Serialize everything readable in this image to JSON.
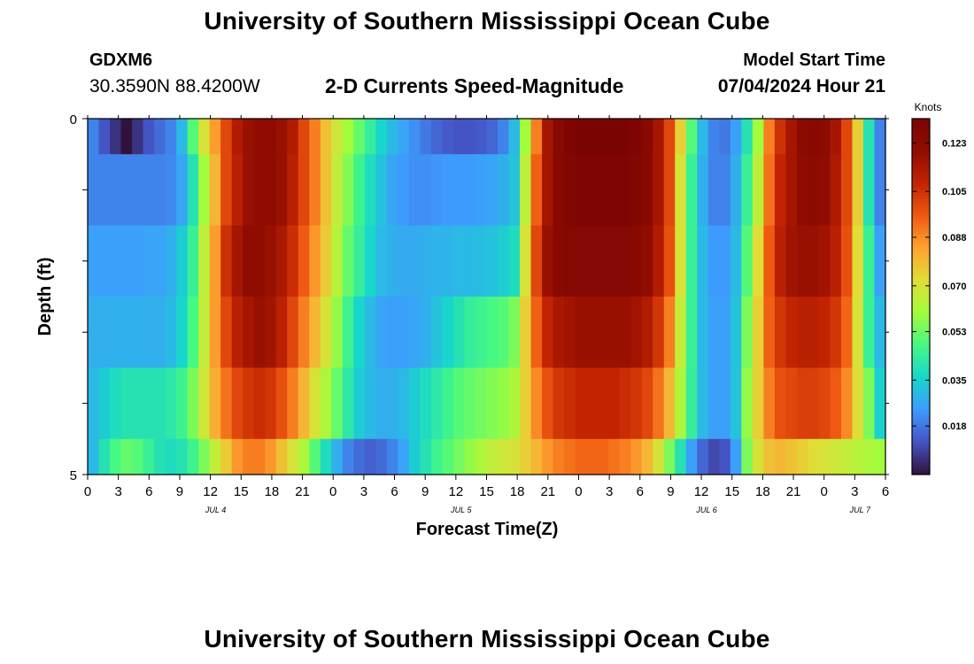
{
  "page": {
    "title": "University of Southern Mississippi Ocean Cube",
    "footer_title": "University of Southern Mississippi Ocean Cube",
    "station": "GDXM6",
    "coordinates": "30.3590N  88.4200W",
    "subtitle": "2-D Currents Speed-Magnitude",
    "model_start_label": "Model Start Time",
    "model_start_value": "07/04/2024 Hour 21"
  },
  "chart_data": {
    "type": "heatmap",
    "title": "2-D Currents Speed-Magnitude",
    "xlabel": "Forecast Time(Z)",
    "ylabel": "Depth (ft)",
    "units_label": "Knots",
    "x_hours_range": [
      0,
      78
    ],
    "y_range": [
      0,
      5
    ],
    "y_tick_labels": [
      "0",
      "5"
    ],
    "x_tick_labels": [
      "0",
      "3",
      "6",
      "9",
      "12",
      "15",
      "18",
      "21",
      "0",
      "3",
      "6",
      "9",
      "12",
      "15",
      "18",
      "21",
      "0",
      "3",
      "6",
      "9",
      "12",
      "15",
      "18",
      "21",
      "0",
      "3",
      "6"
    ],
    "date_labels": [
      {
        "label": "JUL 4",
        "hour": 12
      },
      {
        "label": "JUL 5",
        "hour": 36
      },
      {
        "label": "JUL 6",
        "hour": 60
      },
      {
        "label": "JUL 7",
        "hour": 75
      }
    ],
    "colorbar": {
      "min": 0.0,
      "max": 0.132,
      "tick_values": [
        0.018,
        0.035,
        0.053,
        0.07,
        0.088,
        0.105,
        0.123
      ],
      "tick_labels": [
        "0.018",
        "0.035",
        "0.053",
        "0.070",
        "0.088",
        "0.105",
        "0.123"
      ],
      "colors": [
        "#30123b",
        "#4454c4",
        "#3e9bfe",
        "#18d6cb",
        "#46f884",
        "#a2fc3c",
        "#e1dd37",
        "#fea331",
        "#ef5911",
        "#c22402",
        "#900c00",
        "#7a0403"
      ]
    },
    "depth_layers": [
      "0.0-0.5",
      "0.5-1.5",
      "1.5-2.5",
      "2.5-3.5",
      "3.5-4.5",
      "4.5-5.0"
    ],
    "time_step_hours": 1,
    "speed_knots": [
      [
        0.02,
        0.012,
        0.006,
        0.0,
        0.006,
        0.012,
        0.016,
        0.02,
        0.03,
        0.05,
        0.07,
        0.085,
        0.1,
        0.112,
        0.118,
        0.12,
        0.12,
        0.118,
        0.112,
        0.1,
        0.09,
        0.078,
        0.068,
        0.06,
        0.052,
        0.044,
        0.036,
        0.03,
        0.026,
        0.022,
        0.018,
        0.015,
        0.013,
        0.012,
        0.012,
        0.013,
        0.015,
        0.02,
        0.03,
        0.06,
        0.09,
        0.115,
        0.125,
        0.13,
        0.132,
        0.132,
        0.132,
        0.132,
        0.132,
        0.13,
        0.125,
        0.115,
        0.1,
        0.075,
        0.05,
        0.03,
        0.02,
        0.018,
        0.025,
        0.04,
        0.06,
        0.09,
        0.105,
        0.115,
        0.122,
        0.125,
        0.122,
        0.115,
        0.1,
        0.075,
        0.04,
        0.02
      ],
      [
        0.02,
        0.02,
        0.02,
        0.02,
        0.02,
        0.02,
        0.02,
        0.021,
        0.026,
        0.04,
        0.06,
        0.08,
        0.1,
        0.11,
        0.118,
        0.12,
        0.12,
        0.118,
        0.11,
        0.1,
        0.09,
        0.078,
        0.066,
        0.056,
        0.046,
        0.038,
        0.032,
        0.026,
        0.024,
        0.022,
        0.022,
        0.023,
        0.024,
        0.024,
        0.024,
        0.025,
        0.026,
        0.028,
        0.032,
        0.065,
        0.095,
        0.115,
        0.124,
        0.128,
        0.13,
        0.13,
        0.13,
        0.13,
        0.13,
        0.128,
        0.124,
        0.115,
        0.1,
        0.07,
        0.045,
        0.028,
        0.02,
        0.02,
        0.028,
        0.045,
        0.065,
        0.092,
        0.108,
        0.115,
        0.12,
        0.122,
        0.12,
        0.113,
        0.1,
        0.075,
        0.04,
        0.02
      ],
      [
        0.025,
        0.025,
        0.025,
        0.025,
        0.025,
        0.026,
        0.026,
        0.028,
        0.034,
        0.045,
        0.065,
        0.085,
        0.105,
        0.115,
        0.12,
        0.12,
        0.118,
        0.114,
        0.106,
        0.096,
        0.086,
        0.076,
        0.064,
        0.052,
        0.044,
        0.036,
        0.03,
        0.028,
        0.027,
        0.027,
        0.028,
        0.029,
        0.029,
        0.03,
        0.03,
        0.031,
        0.032,
        0.034,
        0.038,
        0.07,
        0.1,
        0.118,
        0.124,
        0.126,
        0.126,
        0.126,
        0.126,
        0.126,
        0.126,
        0.124,
        0.12,
        0.112,
        0.098,
        0.07,
        0.045,
        0.03,
        0.024,
        0.024,
        0.03,
        0.05,
        0.072,
        0.096,
        0.11,
        0.116,
        0.118,
        0.118,
        0.116,
        0.11,
        0.098,
        0.072,
        0.045,
        0.025
      ],
      [
        0.028,
        0.028,
        0.028,
        0.028,
        0.028,
        0.028,
        0.028,
        0.03,
        0.036,
        0.048,
        0.066,
        0.085,
        0.1,
        0.11,
        0.115,
        0.118,
        0.116,
        0.11,
        0.1,
        0.09,
        0.08,
        0.07,
        0.058,
        0.046,
        0.036,
        0.03,
        0.026,
        0.025,
        0.025,
        0.026,
        0.028,
        0.032,
        0.036,
        0.04,
        0.044,
        0.046,
        0.048,
        0.05,
        0.055,
        0.075,
        0.095,
        0.108,
        0.114,
        0.116,
        0.118,
        0.118,
        0.118,
        0.118,
        0.118,
        0.116,
        0.112,
        0.104,
        0.09,
        0.066,
        0.045,
        0.03,
        0.025,
        0.025,
        0.032,
        0.055,
        0.075,
        0.095,
        0.104,
        0.108,
        0.11,
        0.11,
        0.108,
        0.104,
        0.094,
        0.07,
        0.045,
        0.03
      ],
      [
        0.03,
        0.034,
        0.038,
        0.04,
        0.04,
        0.04,
        0.04,
        0.042,
        0.046,
        0.055,
        0.068,
        0.082,
        0.092,
        0.1,
        0.104,
        0.106,
        0.104,
        0.098,
        0.09,
        0.08,
        0.07,
        0.062,
        0.052,
        0.042,
        0.034,
        0.03,
        0.028,
        0.028,
        0.03,
        0.034,
        0.038,
        0.042,
        0.046,
        0.05,
        0.052,
        0.054,
        0.056,
        0.058,
        0.062,
        0.075,
        0.088,
        0.098,
        0.104,
        0.106,
        0.108,
        0.108,
        0.108,
        0.108,
        0.106,
        0.104,
        0.1,
        0.092,
        0.08,
        0.062,
        0.044,
        0.03,
        0.025,
        0.025,
        0.032,
        0.058,
        0.075,
        0.09,
        0.098,
        0.1,
        0.102,
        0.102,
        0.1,
        0.096,
        0.088,
        0.072,
        0.055,
        0.035
      ],
      [
        0.03,
        0.04,
        0.048,
        0.052,
        0.05,
        0.045,
        0.04,
        0.038,
        0.04,
        0.046,
        0.055,
        0.066,
        0.076,
        0.086,
        0.09,
        0.09,
        0.086,
        0.078,
        0.07,
        0.062,
        0.05,
        0.038,
        0.028,
        0.02,
        0.016,
        0.014,
        0.016,
        0.02,
        0.026,
        0.034,
        0.04,
        0.046,
        0.05,
        0.054,
        0.058,
        0.062,
        0.066,
        0.068,
        0.07,
        0.075,
        0.08,
        0.086,
        0.09,
        0.092,
        0.094,
        0.094,
        0.094,
        0.092,
        0.09,
        0.086,
        0.08,
        0.07,
        0.055,
        0.04,
        0.025,
        0.015,
        0.01,
        0.012,
        0.025,
        0.055,
        0.07,
        0.078,
        0.08,
        0.078,
        0.075,
        0.072,
        0.07,
        0.068,
        0.066,
        0.064,
        0.062,
        0.06
      ]
    ]
  }
}
